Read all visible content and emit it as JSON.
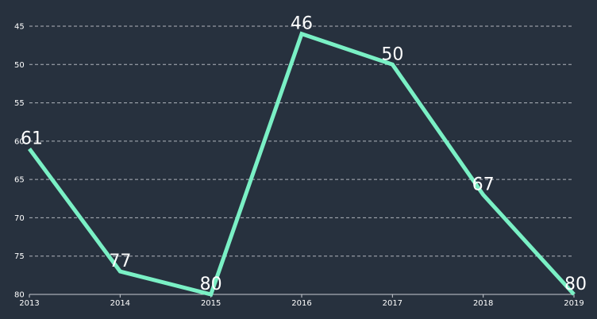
{
  "chart_data": {
    "type": "line",
    "x": [
      "2013",
      "2014",
      "2015",
      "2016",
      "2017",
      "2018",
      "2019"
    ],
    "series": [
      {
        "values": [
          61,
          77,
          80,
          46,
          50,
          67,
          80
        ]
      }
    ],
    "y_ticks": [
      "45",
      "50",
      "55",
      "60",
      "65",
      "70",
      "75",
      "80"
    ],
    "ylim": [
      45,
      80
    ],
    "y_inverted": true,
    "grid": true,
    "colors": {
      "line": "#7af0c5",
      "background": "#27313e",
      "grid": "#c8ccd2",
      "text": "#ffffff"
    }
  }
}
